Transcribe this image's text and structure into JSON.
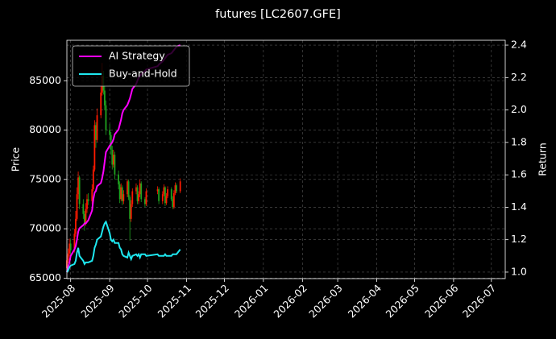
{
  "chart_data": {
    "type": "candlestick",
    "title": "futures [LC2607.GFE]",
    "ylabel": "Price",
    "y2label": "Return",
    "x": [
      -3,
      -2,
      -1,
      0,
      3,
      4,
      5,
      6,
      7,
      10,
      11,
      12,
      13,
      14,
      17,
      18,
      19,
      20,
      21,
      24,
      25,
      26,
      27,
      28,
      31,
      32,
      33,
      34,
      35,
      38,
      39,
      40,
      41,
      42,
      45,
      46,
      47,
      48,
      49,
      52,
      53,
      54,
      55,
      56,
      59,
      60,
      69,
      70,
      73,
      74,
      75,
      76,
      77,
      80,
      81,
      82,
      83,
      84,
      87
    ],
    "xlim": [
      -3,
      345
    ],
    "xticks": [
      {
        "value": 0,
        "label": "2025-08"
      },
      {
        "value": 31,
        "label": "2025-09"
      },
      {
        "value": 61,
        "label": "2025-10"
      },
      {
        "value": 92,
        "label": "2025-11"
      },
      {
        "value": 122,
        "label": "2025-12"
      },
      {
        "value": 153,
        "label": "2026-01"
      },
      {
        "value": 184,
        "label": "2026-02"
      },
      {
        "value": 212,
        "label": "2026-03"
      },
      {
        "value": 243,
        "label": "2026-04"
      },
      {
        "value": 273,
        "label": "2026-05"
      },
      {
        "value": 304,
        "label": "2026-06"
      },
      {
        "value": 334,
        "label": "2026-07"
      }
    ],
    "open": [
      66000,
      66800,
      67500,
      68500,
      67800,
      69500,
      71000,
      73500,
      75200,
      72500,
      71500,
      70500,
      72000,
      73000,
      72800,
      74000,
      76000,
      80500,
      79000,
      81500,
      83800,
      85500,
      84000,
      82500,
      80000,
      79500,
      78000,
      76500,
      77500,
      75500,
      74500,
      73000,
      74200,
      72800,
      73500,
      74800,
      73200,
      71000,
      72500,
      73800,
      74200,
      72800,
      73500,
      74600,
      73000,
      72500,
      73800,
      74000,
      72800,
      73500,
      74200,
      72600,
      73300,
      74000,
      73000,
      72200,
      73600,
      74400,
      73800
    ],
    "high": [
      67300,
      68000,
      69000,
      68900,
      70000,
      71800,
      74200,
      75800,
      75400,
      73000,
      71800,
      72600,
      73500,
      73600,
      74500,
      76400,
      81000,
      80800,
      82200,
      84500,
      86800,
      86000,
      84500,
      83000,
      80600,
      79800,
      78400,
      78000,
      77800,
      75900,
      74800,
      74600,
      74400,
      73900,
      75000,
      75000,
      73400,
      72900,
      74100,
      74600,
      74400,
      73800,
      75000,
      74800,
      73200,
      74100,
      74300,
      74200,
      73800,
      74500,
      74300,
      73600,
      74300,
      74200,
      73300,
      73900,
      74700,
      74600,
      75100
    ],
    "low": [
      65700,
      66500,
      67200,
      67300,
      67600,
      69200,
      70800,
      73000,
      72000,
      71000,
      69800,
      70300,
      71600,
      72400,
      72500,
      73800,
      75800,
      78200,
      78800,
      81200,
      83500,
      83600,
      82000,
      79500,
      79000,
      77500,
      76000,
      76200,
      75000,
      74000,
      72600,
      72800,
      72400,
      72500,
      73200,
      72900,
      68800,
      70700,
      72200,
      73500,
      72500,
      72500,
      73200,
      72700,
      72200,
      72300,
      73500,
      72500,
      72500,
      73300,
      72300,
      72400,
      73100,
      72800,
      72000,
      72000,
      73400,
      73600,
      73600
    ],
    "close": [
      66800,
      67500,
      68500,
      67800,
      69500,
      71000,
      73500,
      75200,
      72500,
      71500,
      70500,
      72000,
      73000,
      72800,
      74000,
      76000,
      80500,
      79000,
      81500,
      83800,
      85500,
      84000,
      82500,
      80000,
      79500,
      78000,
      76500,
      77500,
      75500,
      74500,
      73000,
      74200,
      72800,
      73500,
      74800,
      73200,
      71000,
      72500,
      73800,
      74200,
      72800,
      73500,
      74600,
      73000,
      72500,
      73800,
      74000,
      72800,
      73500,
      74200,
      72600,
      73300,
      74000,
      73000,
      72200,
      73600,
      74400,
      73800,
      74800
    ],
    "up_color": "#ff1a00",
    "down_color": "#1fa31f",
    "series": [
      {
        "name": "AI Strategy",
        "color": "#ff00ff",
        "axis": "y2",
        "values": [
          1.0,
          1.03,
          1.06,
          1.1,
          1.14,
          1.16,
          1.2,
          1.25,
          1.27,
          1.29,
          1.3,
          1.3,
          1.31,
          1.32,
          1.38,
          1.45,
          1.49,
          1.5,
          1.53,
          1.55,
          1.58,
          1.62,
          1.68,
          1.74,
          1.78,
          1.79,
          1.8,
          1.82,
          1.85,
          1.88,
          1.91,
          1.94,
          1.98,
          2.0,
          2.03,
          2.05,
          2.07,
          2.1,
          2.13,
          2.16,
          2.18,
          2.2,
          2.21,
          2.22,
          2.24,
          2.25,
          2.27,
          2.28,
          2.3,
          2.31,
          2.32,
          2.33,
          2.34,
          2.35,
          2.36,
          2.37,
          2.38,
          2.39,
          2.4
        ]
      },
      {
        "name": "Buy-and-Hold",
        "color": "#1ee8f0",
        "axis": "y2",
        "values": [
          1.0,
          1.01,
          1.03,
          1.04,
          1.05,
          1.07,
          1.12,
          1.15,
          1.1,
          1.07,
          1.05,
          1.06,
          1.06,
          1.06,
          1.07,
          1.1,
          1.15,
          1.17,
          1.2,
          1.22,
          1.25,
          1.28,
          1.3,
          1.31,
          1.24,
          1.2,
          1.19,
          1.2,
          1.18,
          1.18,
          1.15,
          1.14,
          1.11,
          1.1,
          1.09,
          1.12,
          1.1,
          1.08,
          1.1,
          1.11,
          1.1,
          1.11,
          1.09,
          1.11,
          1.11,
          1.1,
          1.11,
          1.1,
          1.1,
          1.1,
          1.11,
          1.1,
          1.1,
          1.1,
          1.11,
          1.11,
          1.11,
          1.11,
          1.14
        ]
      }
    ],
    "ylim": [
      64950,
      89100
    ],
    "yticks": [
      65000,
      70000,
      75000,
      80000,
      85000
    ],
    "y2lim": [
      0.96,
      2.43
    ],
    "y2ticks": [
      {
        "value": 1,
        "label": "1.0"
      },
      1.2,
      1.4,
      1.6,
      1.8,
      {
        "value": 2,
        "label": "2.0"
      },
      2.2,
      2.4
    ],
    "grid": true,
    "legend": "upper left"
  }
}
